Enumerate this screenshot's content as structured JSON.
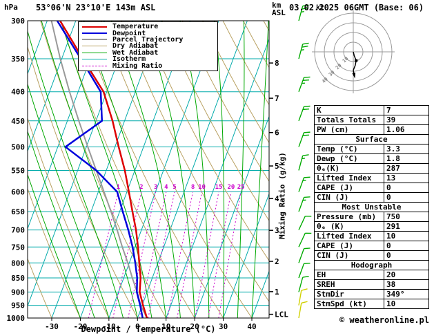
{
  "header": {
    "pressure_unit": "hPa",
    "title": "53°06'N 23°10'E 143m ASL",
    "altitude_unit_line1": "km",
    "altitude_unit_line2": "ASL",
    "datetime": "03.02.2025 06GMT (Base: 06)"
  },
  "legend": {
    "items": [
      {
        "label": "Temperature",
        "color": "#dd0000",
        "width": 2,
        "dash": false
      },
      {
        "label": "Dewpoint",
        "color": "#0000dd",
        "width": 2,
        "dash": false
      },
      {
        "label": "Parcel Trajectory",
        "color": "#999999",
        "width": 2,
        "dash": false
      },
      {
        "label": "Dry Adiabat",
        "color": "#b8a060",
        "width": 1,
        "dash": false
      },
      {
        "label": "Wet Adiabat",
        "color": "#00a800",
        "width": 1,
        "dash": false
      },
      {
        "label": "Isotherm",
        "color": "#00aaaa",
        "width": 1,
        "dash": false
      },
      {
        "label": "Mixing Ratio",
        "color": "#cc00cc",
        "width": 1,
        "dash": true
      }
    ]
  },
  "axes": {
    "pressure_ticks": [
      300,
      350,
      400,
      450,
      500,
      550,
      600,
      650,
      700,
      750,
      800,
      850,
      900,
      950,
      1000
    ],
    "temp_ticks": [
      -30,
      -20,
      -10,
      0,
      10,
      20,
      30,
      40
    ],
    "km_ticks": [
      [
        "8",
        356
      ],
      [
        "7",
        410.6
      ],
      [
        "6",
        471.8
      ],
      [
        "5",
        540.2
      ],
      [
        "4",
        616.4
      ],
      [
        "3",
        701.1
      ],
      [
        "2",
        794.9
      ],
      [
        "1",
        898.7
      ],
      [
        "LCL",
        985
      ]
    ],
    "xlabel": "Dewpoint / Temperature (°C)",
    "mixing_axis_label": "Mixing Ratio (g/kg)"
  },
  "colors": {
    "temperature": "#dd0000",
    "dewpoint": "#0000dd",
    "parcel": "#999999",
    "dry_adiabat": "#b8a060",
    "wet_adiabat": "#00a800",
    "isotherm": "#00aaaa",
    "pressure_line": "#00aaaa",
    "mixing_ratio": "#cc00cc",
    "wind_upper": "#00aa00",
    "wind_surface": "#d0d000"
  },
  "chart_data": {
    "type": "skewt_logp_sounding",
    "pressure_axis_hpa": [
      300,
      1000
    ],
    "temp_axis_c": [
      -30,
      40
    ],
    "mixing_ratio_gkg": [
      1,
      2,
      3,
      4,
      5,
      8,
      10,
      15,
      20,
      25
    ],
    "background": {
      "isotherm": {
        "min": -70,
        "max": 40,
        "step": 10
      },
      "dry_adiabat": {
        "min": -30,
        "max": 120,
        "step": 10
      },
      "wet_adiabat": {
        "min": -20,
        "max": 40,
        "step": 5
      },
      "mixing_top_hpa": 600
    },
    "levels_hpa": [
      1000,
      950,
      900,
      850,
      800,
      750,
      700,
      650,
      600,
      550,
      500,
      450,
      400,
      350,
      300
    ],
    "temperature_c": [
      3.3,
      0.3,
      -2.6,
      -4.1,
      -6.5,
      -9.0,
      -11.9,
      -15.5,
      -19.3,
      -23.5,
      -28.7,
      -34.2,
      -41.1,
      -52.6,
      -65.5
    ],
    "dewpoint_c": [
      1.8,
      -0.7,
      -3.6,
      -5.3,
      -7.9,
      -10.9,
      -14.6,
      -18.9,
      -23.4,
      -33.5,
      -47.3,
      -37.9,
      -42.1,
      -53.3,
      -66.5
    ],
    "parcel_c": [
      3.3,
      -0.5,
      -3.5,
      -7.0,
      -10.5,
      -14.5,
      -18.5,
      -23.0,
      -28.0,
      -33.5,
      -39.5,
      -46.0,
      -53.0,
      -60.5,
      -68.5
    ],
    "wind": [
      {
        "p": 300,
        "dir": 15,
        "spd": 25
      },
      {
        "p": 350,
        "dir": 15,
        "spd": 25
      },
      {
        "p": 400,
        "dir": 20,
        "spd": 25
      },
      {
        "p": 450,
        "dir": 20,
        "spd": 20
      },
      {
        "p": 500,
        "dir": 20,
        "spd": 20
      },
      {
        "p": 550,
        "dir": 15,
        "spd": 15
      },
      {
        "p": 600,
        "dir": 20,
        "spd": 15
      },
      {
        "p": 650,
        "dir": 20,
        "spd": 15
      },
      {
        "p": 700,
        "dir": 25,
        "spd": 10
      },
      {
        "p": 750,
        "dir": 25,
        "spd": 10
      },
      {
        "p": 800,
        "dir": 20,
        "spd": 10
      },
      {
        "p": 850,
        "dir": 20,
        "spd": 10
      },
      {
        "p": 900,
        "dir": 15,
        "spd": 10
      },
      {
        "p": 950,
        "dir": 10,
        "spd": 10,
        "sfc": true
      },
      {
        "p": 1000,
        "dir": 10,
        "spd": 10,
        "sfc": true
      }
    ]
  },
  "hodograph": {
    "unit_label": "kt",
    "rings_kt": [
      10,
      20,
      30,
      40
    ],
    "trace_uv_kt": [
      [
        0,
        0
      ],
      [
        1,
        -4
      ],
      [
        3,
        -9
      ],
      [
        2,
        -14
      ],
      [
        0,
        -19
      ],
      [
        1,
        -24
      ]
    ],
    "marker_uv_kt": [
      3,
      -9
    ]
  },
  "table": {
    "groups": [
      {
        "header": null,
        "rows": [
          [
            "K",
            "7"
          ],
          [
            "Totals Totals",
            "39"
          ],
          [
            "PW (cm)",
            "1.06"
          ]
        ]
      },
      {
        "header": "Surface",
        "rows": [
          [
            "Temp (°C)",
            "3.3"
          ],
          [
            "Dewp (°C)",
            "1.8"
          ],
          [
            "θₑ(K)",
            "287"
          ],
          [
            "Lifted Index",
            "13"
          ],
          [
            "CAPE (J)",
            "0"
          ],
          [
            "CIN (J)",
            "0"
          ]
        ]
      },
      {
        "header": "Most Unstable",
        "rows": [
          [
            "Pressure (mb)",
            "750"
          ],
          [
            "θₑ (K)",
            "291"
          ],
          [
            "Lifted Index",
            "10"
          ],
          [
            "CAPE (J)",
            "0"
          ],
          [
            "CIN (J)",
            "0"
          ]
        ]
      },
      {
        "header": "Hodograph",
        "rows": [
          [
            "EH",
            "20"
          ],
          [
            "SREH",
            "38"
          ],
          [
            "StmDir",
            "349°"
          ],
          [
            "StmSpd (kt)",
            "10"
          ]
        ]
      }
    ]
  },
  "footer": {
    "credit_symbol": "©",
    "credit_text": "weatheronline.pl"
  }
}
